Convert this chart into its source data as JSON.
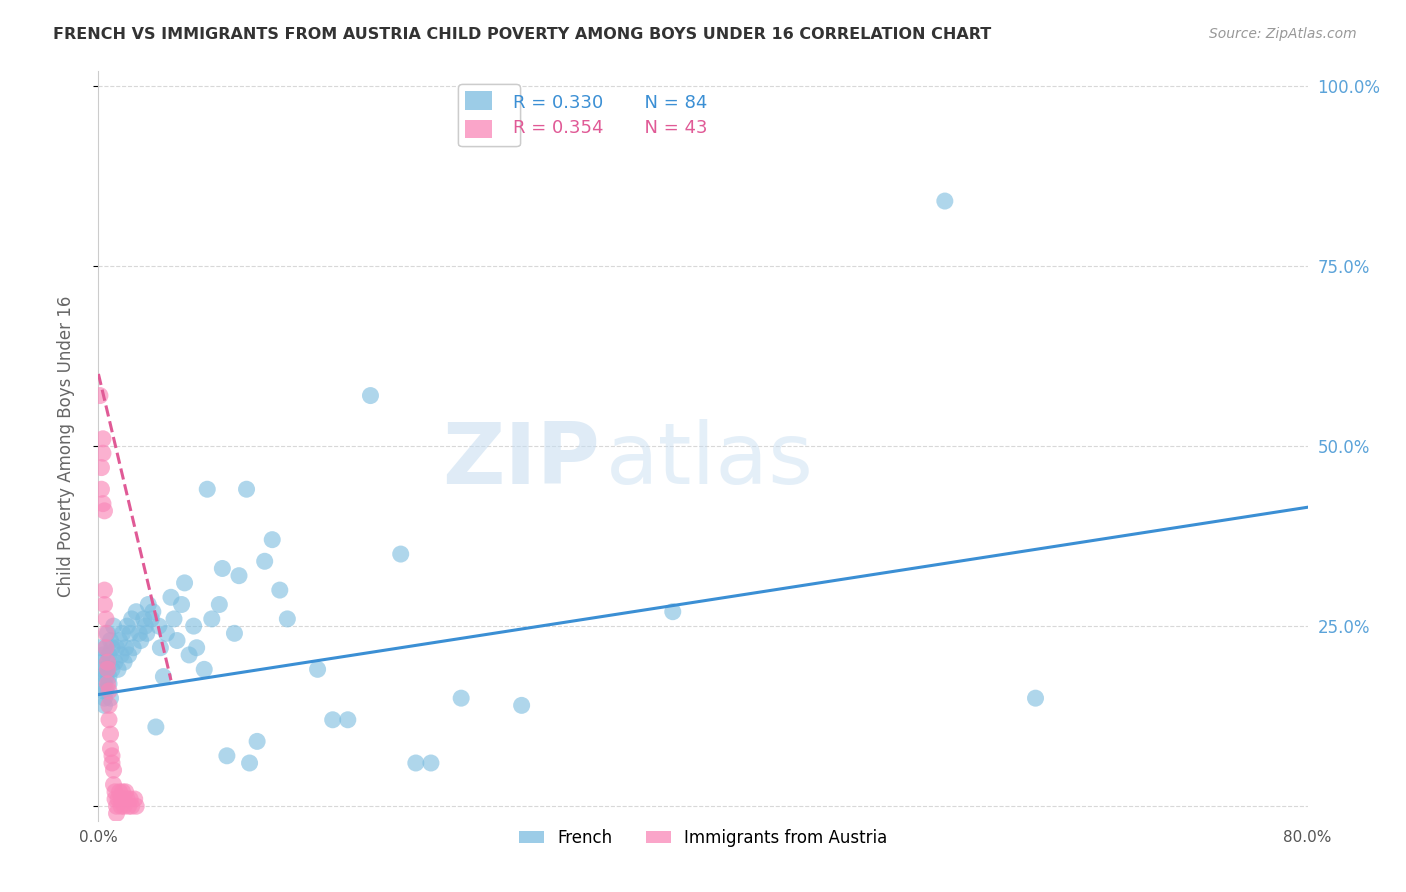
{
  "title": "FRENCH VS IMMIGRANTS FROM AUSTRIA CHILD POVERTY AMONG BOYS UNDER 16 CORRELATION CHART",
  "source": "Source: ZipAtlas.com",
  "ylabel": "Child Poverty Among Boys Under 16",
  "xlim": [
    0.0,
    0.8
  ],
  "ylim": [
    -0.02,
    1.02
  ],
  "yticks_right": [
    0.0,
    0.25,
    0.5,
    0.75,
    1.0
  ],
  "yticklabels_right": [
    "",
    "25.0%",
    "50.0%",
    "75.0%",
    "100.0%"
  ],
  "xticks": [
    0.0,
    0.1,
    0.2,
    0.3,
    0.4,
    0.5,
    0.6,
    0.7,
    0.8
  ],
  "xticklabels": [
    "0.0%",
    "",
    "",
    "",
    "",
    "",
    "",
    "",
    "80.0%"
  ],
  "legend1_r": "R = 0.330",
  "legend1_n": "N = 84",
  "legend2_r": "R = 0.354",
  "legend2_n": "N = 43",
  "legend1_color": "#7bbcdf",
  "legend2_color": "#f987b8",
  "french_color": "#7bbcdf",
  "austria_color": "#f987b8",
  "trendline_french_color": "#3b8fd4",
  "trendline_austria_color": "#e05a96",
  "watermark_zip": "ZIP",
  "watermark_atlas": "atlas",
  "french_scatter": [
    [
      0.001,
      0.22
    ],
    [
      0.002,
      0.18
    ],
    [
      0.002,
      0.2
    ],
    [
      0.003,
      0.16
    ],
    [
      0.003,
      0.19
    ],
    [
      0.003,
      0.21
    ],
    [
      0.004,
      0.14
    ],
    [
      0.004,
      0.17
    ],
    [
      0.004,
      0.15
    ],
    [
      0.005,
      0.18
    ],
    [
      0.005,
      0.22
    ],
    [
      0.005,
      0.16
    ],
    [
      0.006,
      0.19
    ],
    [
      0.006,
      0.24
    ],
    [
      0.006,
      0.2
    ],
    [
      0.007,
      0.18
    ],
    [
      0.007,
      0.21
    ],
    [
      0.007,
      0.17
    ],
    [
      0.008,
      0.15
    ],
    [
      0.008,
      0.23
    ],
    [
      0.009,
      0.19
    ],
    [
      0.009,
      0.22
    ],
    [
      0.01,
      0.25
    ],
    [
      0.011,
      0.2
    ],
    [
      0.012,
      0.22
    ],
    [
      0.013,
      0.19
    ],
    [
      0.014,
      0.23
    ],
    [
      0.015,
      0.21
    ],
    [
      0.016,
      0.24
    ],
    [
      0.017,
      0.2
    ],
    [
      0.018,
      0.22
    ],
    [
      0.019,
      0.25
    ],
    [
      0.02,
      0.21
    ],
    [
      0.021,
      0.24
    ],
    [
      0.022,
      0.26
    ],
    [
      0.023,
      0.22
    ],
    [
      0.025,
      0.27
    ],
    [
      0.027,
      0.24
    ],
    [
      0.028,
      0.23
    ],
    [
      0.03,
      0.26
    ],
    [
      0.031,
      0.25
    ],
    [
      0.032,
      0.24
    ],
    [
      0.033,
      0.28
    ],
    [
      0.035,
      0.26
    ],
    [
      0.036,
      0.27
    ],
    [
      0.038,
      0.11
    ],
    [
      0.04,
      0.25
    ],
    [
      0.041,
      0.22
    ],
    [
      0.043,
      0.18
    ],
    [
      0.045,
      0.24
    ],
    [
      0.048,
      0.29
    ],
    [
      0.05,
      0.26
    ],
    [
      0.052,
      0.23
    ],
    [
      0.055,
      0.28
    ],
    [
      0.057,
      0.31
    ],
    [
      0.06,
      0.21
    ],
    [
      0.063,
      0.25
    ],
    [
      0.065,
      0.22
    ],
    [
      0.07,
      0.19
    ],
    [
      0.072,
      0.44
    ],
    [
      0.075,
      0.26
    ],
    [
      0.08,
      0.28
    ],
    [
      0.082,
      0.33
    ],
    [
      0.085,
      0.07
    ],
    [
      0.09,
      0.24
    ],
    [
      0.093,
      0.32
    ],
    [
      0.098,
      0.44
    ],
    [
      0.1,
      0.06
    ],
    [
      0.105,
      0.09
    ],
    [
      0.11,
      0.34
    ],
    [
      0.115,
      0.37
    ],
    [
      0.12,
      0.3
    ],
    [
      0.125,
      0.26
    ],
    [
      0.145,
      0.19
    ],
    [
      0.155,
      0.12
    ],
    [
      0.165,
      0.12
    ],
    [
      0.18,
      0.57
    ],
    [
      0.2,
      0.35
    ],
    [
      0.21,
      0.06
    ],
    [
      0.22,
      0.06
    ],
    [
      0.24,
      0.15
    ],
    [
      0.28,
      0.14
    ],
    [
      0.38,
      0.27
    ],
    [
      0.56,
      0.84
    ],
    [
      0.62,
      0.15
    ]
  ],
  "austria_scatter": [
    [
      0.001,
      0.57
    ],
    [
      0.002,
      0.44
    ],
    [
      0.002,
      0.47
    ],
    [
      0.003,
      0.42
    ],
    [
      0.003,
      0.49
    ],
    [
      0.003,
      0.51
    ],
    [
      0.004,
      0.41
    ],
    [
      0.004,
      0.3
    ],
    [
      0.004,
      0.28
    ],
    [
      0.005,
      0.26
    ],
    [
      0.005,
      0.24
    ],
    [
      0.005,
      0.22
    ],
    [
      0.006,
      0.2
    ],
    [
      0.006,
      0.19
    ],
    [
      0.006,
      0.17
    ],
    [
      0.007,
      0.16
    ],
    [
      0.007,
      0.14
    ],
    [
      0.007,
      0.12
    ],
    [
      0.008,
      0.1
    ],
    [
      0.008,
      0.08
    ],
    [
      0.009,
      0.07
    ],
    [
      0.009,
      0.06
    ],
    [
      0.01,
      0.05
    ],
    [
      0.01,
      0.03
    ],
    [
      0.011,
      0.02
    ],
    [
      0.011,
      0.01
    ],
    [
      0.012,
      0.0
    ],
    [
      0.012,
      -0.01
    ],
    [
      0.013,
      0.01
    ],
    [
      0.014,
      0.02
    ],
    [
      0.015,
      0.01
    ],
    [
      0.015,
      0.0
    ],
    [
      0.016,
      0.02
    ],
    [
      0.016,
      0.01
    ],
    [
      0.017,
      0.0
    ],
    [
      0.017,
      0.01
    ],
    [
      0.018,
      0.02
    ],
    [
      0.019,
      0.01
    ],
    [
      0.02,
      0.0
    ],
    [
      0.021,
      0.01
    ],
    [
      0.022,
      0.0
    ],
    [
      0.024,
      0.01
    ],
    [
      0.025,
      0.0
    ]
  ],
  "french_trend_x": [
    0.0,
    0.8
  ],
  "french_trend_y": [
    0.155,
    0.415
  ],
  "austria_trend_x": [
    0.0,
    0.048
  ],
  "austria_trend_y": [
    0.6,
    0.175
  ],
  "background_color": "#ffffff",
  "grid_color": "#d8d8d8",
  "title_color": "#333333",
  "right_tick_color": "#5ba3d9",
  "xtick_color": "#555555"
}
